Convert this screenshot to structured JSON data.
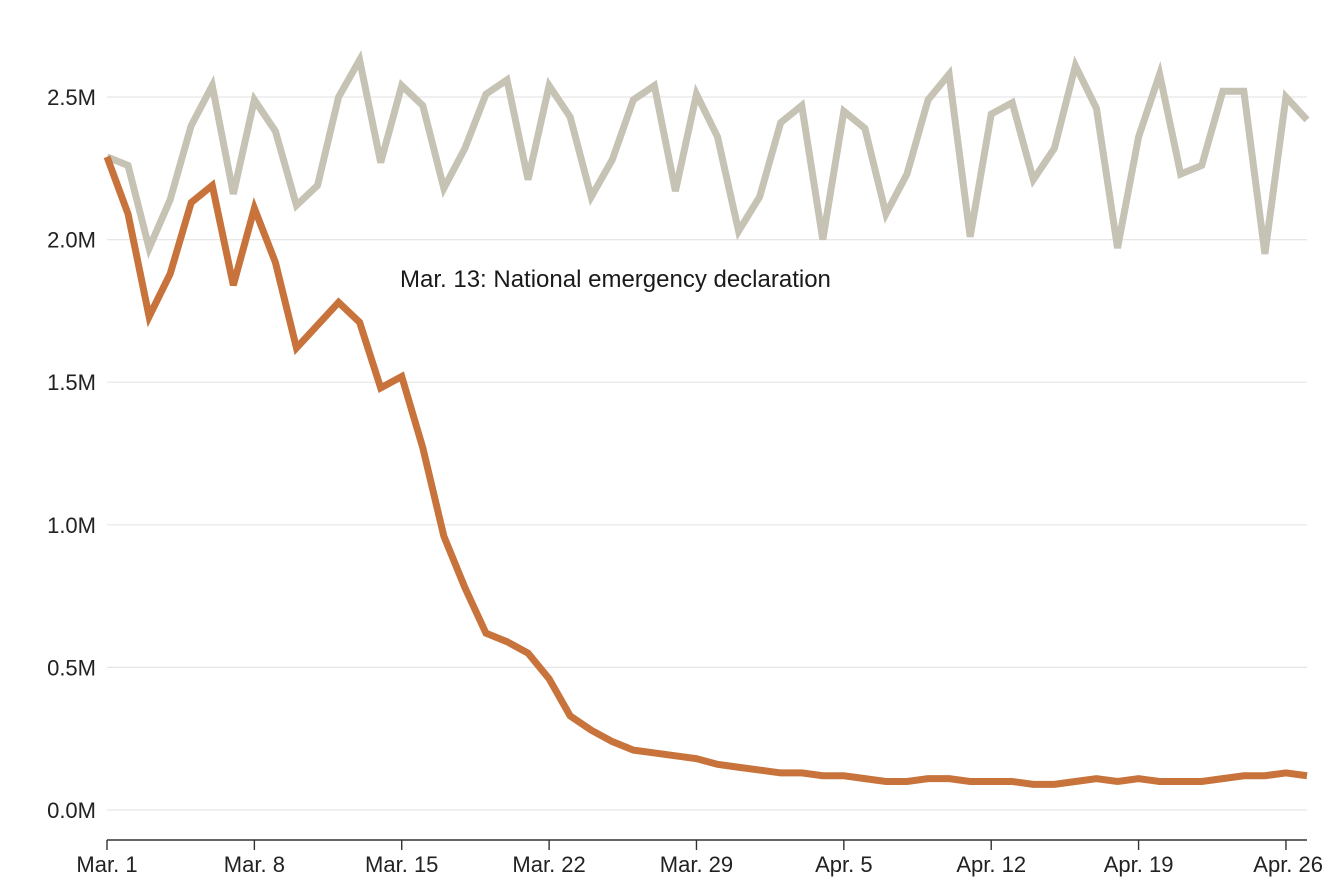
{
  "chart_data": {
    "type": "line",
    "annotation": "Mar. 13: National emergency declaration",
    "ylim": [
      0,
      2.7
    ],
    "y_ticks": [
      {
        "value": 0.0,
        "label": "0.0M"
      },
      {
        "value": 0.5,
        "label": "0.5M"
      },
      {
        "value": 1.0,
        "label": "1.0M"
      },
      {
        "value": 1.5,
        "label": "1.5M"
      },
      {
        "value": 2.0,
        "label": "2.0M"
      },
      {
        "value": 2.5,
        "label": "2.5M"
      }
    ],
    "x_ticks": [
      "Mar. 1",
      "Mar. 8",
      "Mar. 15",
      "Mar. 22",
      "Mar. 29",
      "Apr. 5",
      "Apr. 12",
      "Apr. 19",
      "Apr. 26"
    ],
    "x": [
      "Mar. 1",
      "Mar. 2",
      "Mar. 3",
      "Mar. 4",
      "Mar. 5",
      "Mar. 6",
      "Mar. 7",
      "Mar. 8",
      "Mar. 9",
      "Mar. 10",
      "Mar. 11",
      "Mar. 12",
      "Mar. 13",
      "Mar. 14",
      "Mar. 15",
      "Mar. 16",
      "Mar. 17",
      "Mar. 18",
      "Mar. 19",
      "Mar. 20",
      "Mar. 21",
      "Mar. 22",
      "Mar. 23",
      "Mar. 24",
      "Mar. 25",
      "Mar. 26",
      "Mar. 27",
      "Mar. 28",
      "Mar. 29",
      "Mar. 30",
      "Mar. 31",
      "Apr. 1",
      "Apr. 2",
      "Apr. 3",
      "Apr. 4",
      "Apr. 5",
      "Apr. 6",
      "Apr. 7",
      "Apr. 8",
      "Apr. 9",
      "Apr. 10",
      "Apr. 11",
      "Apr. 12",
      "Apr. 13",
      "Apr. 14",
      "Apr. 15",
      "Apr. 16",
      "Apr. 17",
      "Apr. 18",
      "Apr. 19",
      "Apr. 20",
      "Apr. 21",
      "Apr. 22",
      "Apr. 23",
      "Apr. 24",
      "Apr. 25",
      "Apr. 26",
      "Apr. 27"
    ],
    "grid": true,
    "series": [
      {
        "color": "#c6c3b5",
        "values": [
          2.29,
          2.26,
          1.97,
          2.14,
          2.4,
          2.54,
          2.16,
          2.49,
          2.38,
          2.12,
          2.19,
          2.5,
          2.63,
          2.27,
          2.54,
          2.47,
          2.18,
          2.32,
          2.51,
          2.56,
          2.21,
          2.54,
          2.43,
          2.15,
          2.28,
          2.49,
          2.54,
          2.17,
          2.51,
          2.36,
          2.03,
          2.15,
          2.41,
          2.47,
          2.0,
          2.45,
          2.39,
          2.09,
          2.23,
          2.49,
          2.58,
          2.01,
          2.44,
          2.48,
          2.21,
          2.32,
          2.61,
          2.46,
          1.97,
          2.36,
          2.58,
          2.23,
          2.26,
          2.52,
          2.52,
          1.95,
          2.5,
          2.42
        ]
      },
      {
        "color": "#c8733b",
        "values": [
          2.29,
          2.09,
          1.73,
          1.88,
          2.13,
          2.19,
          1.84,
          2.11,
          1.92,
          1.62,
          1.7,
          1.78,
          1.71,
          1.48,
          1.52,
          1.27,
          0.96,
          0.78,
          0.62,
          0.59,
          0.55,
          0.46,
          0.33,
          0.28,
          0.24,
          0.21,
          0.2,
          0.19,
          0.18,
          0.16,
          0.15,
          0.14,
          0.13,
          0.13,
          0.12,
          0.12,
          0.11,
          0.1,
          0.1,
          0.11,
          0.11,
          0.1,
          0.1,
          0.1,
          0.09,
          0.09,
          0.1,
          0.11,
          0.1,
          0.11,
          0.1,
          0.1,
          0.1,
          0.11,
          0.12,
          0.12,
          0.13,
          0.12
        ]
      }
    ]
  }
}
